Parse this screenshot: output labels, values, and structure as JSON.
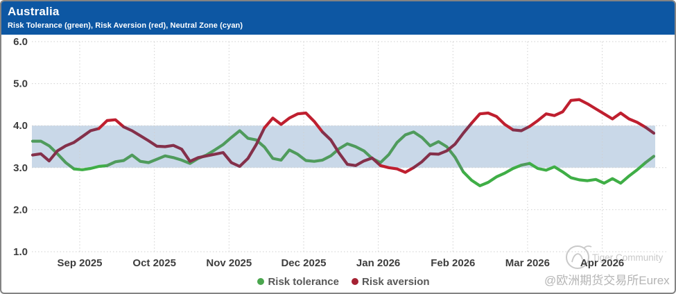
{
  "header": {
    "title": "Australia",
    "subtitle": "Risk Tolerance (green), Risk Aversion (red), Neutral Zone (cyan)"
  },
  "colors": {
    "header_bg": "#0d57a3",
    "band": "#c9d8e8",
    "grid": "#cfcfcf",
    "axis_text": "#3d3d3d",
    "green_bright": "#3fae46",
    "green_muted": "#4f9b5c",
    "red_bright": "#bf1f2f",
    "red_muted": "#84304a",
    "legend_green_dot": "#4aa64e",
    "legend_red_dot": "#a52233",
    "watermark_light": "#c9c9c9",
    "watermark_handle": "#b4b4b4"
  },
  "chart_data": {
    "type": "line",
    "title": "Australia",
    "subtitle": "Risk Tolerance (green), Risk Aversion (red), Neutral Zone (cyan)",
    "ylim": [
      1.0,
      6.0
    ],
    "y_ticks": [
      "6.0",
      "5.0",
      "4.0",
      "3.0",
      "2.0",
      "1.0"
    ],
    "x_tick_labels": [
      "Sep 2025",
      "Oct 2025",
      "Nov 2025",
      "Dec 2025",
      "Jan 2026",
      "Feb 2026",
      "Mar 2026",
      "Apr 2026"
    ],
    "x_span": "mid-Aug 2025 to late Apr 2026, evenly sampled",
    "grid": "dotted",
    "legend_position": "bottom-center",
    "neutral_zone": {
      "from": 3.0,
      "to": 4.0
    },
    "series": [
      {
        "name": "Risk tolerance",
        "color_key": "green",
        "values": [
          3.63,
          3.63,
          3.52,
          3.33,
          3.12,
          2.97,
          2.95,
          2.98,
          3.03,
          3.05,
          3.14,
          3.17,
          3.3,
          3.15,
          3.12,
          3.2,
          3.28,
          3.24,
          3.18,
          3.1,
          3.22,
          3.3,
          3.42,
          3.55,
          3.72,
          3.88,
          3.7,
          3.66,
          3.49,
          3.22,
          3.18,
          3.42,
          3.32,
          3.17,
          3.15,
          3.18,
          3.28,
          3.45,
          3.57,
          3.5,
          3.4,
          3.22,
          3.12,
          3.31,
          3.6,
          3.78,
          3.85,
          3.72,
          3.52,
          3.62,
          3.5,
          3.25,
          2.9,
          2.7,
          2.57,
          2.65,
          2.78,
          2.87,
          2.98,
          3.06,
          3.1,
          2.98,
          2.94,
          3.02,
          2.9,
          2.76,
          2.71,
          2.69,
          2.72,
          2.63,
          2.74,
          2.63,
          2.8,
          2.95,
          3.12,
          3.27
        ]
      },
      {
        "name": "Risk aversion",
        "color_key": "red",
        "values": [
          3.3,
          3.33,
          3.16,
          3.4,
          3.52,
          3.6,
          3.74,
          3.88,
          3.93,
          4.12,
          4.14,
          3.97,
          3.88,
          3.76,
          3.64,
          3.51,
          3.5,
          3.53,
          3.44,
          3.15,
          3.24,
          3.28,
          3.32,
          3.36,
          3.12,
          3.03,
          3.22,
          3.55,
          3.95,
          4.18,
          4.03,
          4.18,
          4.28,
          4.3,
          4.1,
          3.85,
          3.66,
          3.35,
          3.08,
          3.05,
          3.16,
          3.23,
          3.05,
          3.0,
          2.97,
          2.89,
          3.0,
          3.14,
          3.33,
          3.32,
          3.4,
          3.56,
          3.82,
          4.06,
          4.28,
          4.3,
          4.22,
          4.03,
          3.9,
          3.88,
          3.98,
          4.12,
          4.28,
          4.24,
          4.33,
          4.6,
          4.62,
          4.52,
          4.4,
          4.28,
          4.16,
          4.3,
          4.16,
          4.08,
          3.96,
          3.82
        ]
      }
    ]
  },
  "legend": {
    "items": [
      {
        "label": "Risk tolerance"
      },
      {
        "label": "Risk aversion"
      }
    ]
  },
  "watermark": {
    "community": "Tiger Community",
    "handle": "@欧洲期货交易所Eurex"
  }
}
